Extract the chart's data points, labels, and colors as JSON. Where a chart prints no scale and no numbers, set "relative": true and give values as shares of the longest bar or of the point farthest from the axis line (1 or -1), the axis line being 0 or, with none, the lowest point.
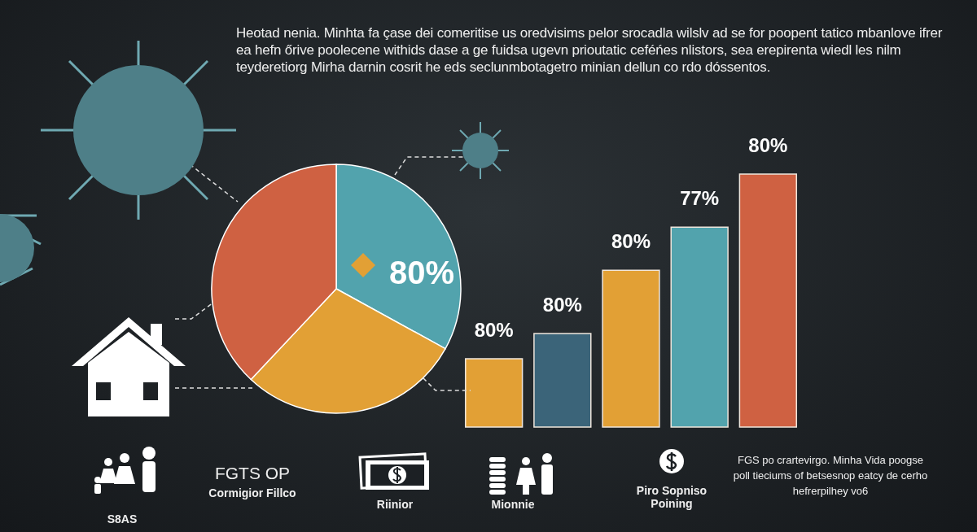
{
  "chart_data": [
    {
      "type": "other",
      "title": "Heotad nenia. Minhta fa çase dei comeritise us oredvisims pelor srocadla wilslv ad se for poopent tatico mbanlove ifrer ea hefn őrive poolecene withids dase a ge fuidsa ugevn prioutatic ceféńes nlistors, sea erepirenta wiedl les nilm teyderetiorg Mirha darnin cosrit he eds seclunmbotagetro minian dellun co rdo dóssentos."
    },
    {
      "type": "pie",
      "categories": [
        null,
        null,
        null
      ],
      "values": [
        33,
        29,
        38
      ],
      "colors": [
        "#52a3ad",
        "#e2a035",
        "#cf6142"
      ],
      "annotations": [
        "80%"
      ]
    },
    {
      "type": "bar",
      "categories": [
        null,
        null,
        null,
        null,
        null
      ],
      "values": [
        0.27,
        0.37,
        0.62,
        0.79,
        1
      ],
      "colors": [
        "#e2a035",
        "#3b6479",
        "#e2a035",
        "#52a3ad",
        "#cf6142"
      ],
      "relative": true,
      "annotations": [
        "80%",
        "80%",
        "80%",
        "77%",
        "80%"
      ]
    },
    {
      "type": "other",
      "annotations": [
        "S8AS",
        "FGTS OP",
        "Cormigior Fillco",
        "Riinior",
        "Mionnie",
        "Piro Sopniso Poining",
        "FGS po crartevirgo. Minha Vida poogse poll tieciums of betsesnop eatcy de cerho hefrerpilhey vo6"
      ]
    }
  ]
}
